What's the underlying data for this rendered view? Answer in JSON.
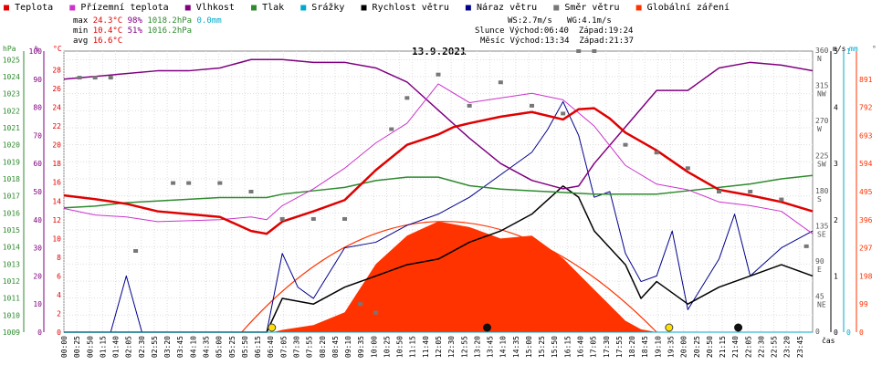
{
  "header": {
    "legend": [
      {
        "label": "Teplota",
        "color": "#e00000"
      },
      {
        "label": "Přízemní teplota",
        "color": "#cc33cc"
      },
      {
        "label": "Vlhkost",
        "color": "#800080"
      },
      {
        "label": "Tlak",
        "color": "#2e8b2e"
      },
      {
        "label": "Srážky",
        "color": "#00aacc"
      },
      {
        "label": "Rychlost větru",
        "color": "#000000"
      },
      {
        "label": "Náraz větru",
        "color": "#00008b"
      },
      {
        "label": "Směr větru",
        "color": "#777777"
      },
      {
        "label": "Globální záření",
        "color": "#ff3300"
      }
    ],
    "stats": {
      "max": {
        "label": "max",
        "temp": "24.3°C",
        "hum": "98%",
        "press": "1018.2hPa",
        "rain": "0.0mm"
      },
      "min": {
        "label": "min",
        "temp": "10.4°C",
        "hum": "51%",
        "press": "1016.2hPa"
      },
      "avg": {
        "label": "avg",
        "temp": "16.6°C"
      }
    },
    "wind": {
      "ws": "WS:2.7m/s",
      "wg": "WG:4.1m/s"
    },
    "sun": {
      "label": "Slunce",
      "rise": "Východ:06:40",
      "set": "Západ:19:24"
    },
    "moon": {
      "label": "Měsíc",
      "rise": "Východ:13:34",
      "set": "Západ:21:37"
    }
  },
  "chart_data": {
    "type": "line",
    "title": "13.9.2021",
    "xlabel": "čas",
    "x_ticks": [
      "00:00",
      "00:25",
      "00:50",
      "01:15",
      "01:40",
      "02:05",
      "02:30",
      "02:55",
      "03:20",
      "03:45",
      "04:10",
      "04:35",
      "05:00",
      "05:25",
      "05:50",
      "06:15",
      "06:40",
      "07:05",
      "07:30",
      "07:55",
      "08:20",
      "08:45",
      "09:10",
      "09:35",
      "10:00",
      "10:25",
      "10:50",
      "11:15",
      "11:40",
      "12:05",
      "12:30",
      "12:55",
      "13:20",
      "13:45",
      "14:10",
      "14:35",
      "15:00",
      "15:25",
      "15:50",
      "16:15",
      "16:40",
      "17:05",
      "17:30",
      "17:55",
      "18:20",
      "18:45",
      "19:10",
      "19:35",
      "20:00",
      "20:25",
      "20:50",
      "21:15",
      "21:40",
      "22:05",
      "22:30",
      "22:55",
      "23:20",
      "23:45"
    ],
    "axes": {
      "pressure": {
        "unit": "hPa",
        "range": [
          1009,
          1025.5
        ],
        "ticks": [
          "1025",
          "1024",
          "1023",
          "1022",
          "1021",
          "1020",
          "1019",
          "1018",
          "1017",
          "1016",
          "1015",
          "1014",
          "1013",
          "1012",
          "1011",
          "1010",
          "1009"
        ]
      },
      "humidity": {
        "unit": "%",
        "range": [
          0,
          100
        ],
        "ticks": [
          "100",
          "90",
          "80",
          "70",
          "60",
          "50",
          "40",
          "30",
          "20",
          "10",
          "0"
        ]
      },
      "temperature": {
        "unit": "°C",
        "range": [
          0,
          30
        ],
        "ticks": [
          "28",
          "26",
          "24",
          "22",
          "20",
          "18",
          "16",
          "14",
          "12",
          "10",
          "8",
          "6",
          "4",
          "2",
          "0"
        ]
      },
      "wind_dir": {
        "unit": "°",
        "range": [
          0,
          360
        ],
        "ticks": [
          "360 N",
          "315 NW",
          "270 W",
          "225 SW",
          "180 S",
          "135 SE",
          "90 E",
          "45 NE",
          "0"
        ]
      },
      "wind_speed": {
        "unit": "m/s",
        "range": [
          0,
          5
        ],
        "ticks": [
          "5",
          "4",
          "3",
          "2",
          "1",
          "0"
        ]
      },
      "rain": {
        "unit": "mm",
        "range": [
          0,
          1
        ],
        "ticks": [
          "1",
          "0"
        ]
      },
      "radiation": {
        "unit": "W/m²",
        "range": [
          0,
          990
        ],
        "ticks": [
          "891",
          "792",
          "693",
          "594",
          "495",
          "396",
          "297",
          "198",
          "99",
          "0"
        ]
      }
    },
    "series": [
      {
        "name": "Teplota",
        "axis": "temperature",
        "x": [
          0,
          1,
          2,
          3,
          4,
          5,
          6,
          6.5,
          7,
          8,
          9,
          10,
          11,
          12,
          12.5,
          13,
          14,
          15,
          16,
          16.5,
          17,
          17.5,
          18,
          19,
          20,
          21,
          22,
          23,
          24
        ],
        "y": [
          14.6,
          14.2,
          13.7,
          12.9,
          12.6,
          12.3,
          10.8,
          10.5,
          11.8,
          12.9,
          14.1,
          17.3,
          20.0,
          21.1,
          21.9,
          22.3,
          23.0,
          23.5,
          22.7,
          23.8,
          23.9,
          22.8,
          21.3,
          19.4,
          17.1,
          15.2,
          14.6,
          13.9,
          12.9
        ]
      },
      {
        "name": "Přízemní teplota",
        "axis": "temperature",
        "x": [
          0,
          1,
          2,
          3,
          4,
          5,
          6,
          6.5,
          7,
          8,
          9,
          10,
          11,
          12,
          13,
          14,
          15,
          16,
          17,
          18,
          19,
          20,
          21,
          22,
          23,
          24
        ],
        "y": [
          13.2,
          12.5,
          12.3,
          11.8,
          11.9,
          12.0,
          12.3,
          12.0,
          13.5,
          15.3,
          17.5,
          20.2,
          22.3,
          26.5,
          24.5,
          25.0,
          25.5,
          24.8,
          22.0,
          17.8,
          15.8,
          15.2,
          13.9,
          13.5,
          12.9,
          10.5
        ]
      },
      {
        "name": "Vlhkost",
        "axis": "humidity",
        "x": [
          0,
          1,
          2,
          3,
          4,
          5,
          6,
          7,
          8,
          9,
          10,
          11,
          12,
          13,
          14,
          15,
          16,
          16.5,
          17,
          18,
          19,
          20,
          21,
          22,
          23,
          24
        ],
        "y": [
          90,
          91,
          92,
          93,
          93,
          94,
          97,
          97,
          96,
          96,
          94,
          89,
          79,
          69,
          60,
          54,
          51,
          52,
          60,
          73,
          86,
          86,
          94,
          96,
          95,
          93
        ]
      },
      {
        "name": "Tlak",
        "axis": "pressure",
        "x": [
          0,
          1,
          2,
          3,
          4,
          5,
          6,
          6.5,
          7,
          8,
          9,
          10,
          11,
          12,
          13,
          14,
          15,
          16,
          17,
          18,
          19,
          20,
          21,
          22,
          23,
          24
        ],
        "y": [
          1016.3,
          1016.4,
          1016.6,
          1016.7,
          1016.8,
          1016.9,
          1016.9,
          1016.9,
          1017.1,
          1017.3,
          1017.5,
          1017.9,
          1018.1,
          1018.1,
          1017.6,
          1017.4,
          1017.3,
          1017.2,
          1017.1,
          1017.1,
          1017.1,
          1017.3,
          1017.5,
          1017.7,
          1018.0,
          1018.2
        ]
      },
      {
        "name": "Rychlost větru",
        "axis": "wind_speed",
        "x": [
          0,
          6.5,
          7,
          8,
          9,
          10,
          11,
          12,
          13,
          14,
          15,
          16,
          16.5,
          17,
          18,
          18.5,
          19,
          20,
          21,
          22,
          23,
          24
        ],
        "y": [
          0,
          0,
          0.6,
          0.5,
          0.8,
          1.0,
          1.2,
          1.3,
          1.6,
          1.8,
          2.1,
          2.6,
          2.4,
          1.8,
          1.2,
          0.6,
          0.9,
          0.5,
          0.8,
          1.0,
          1.2,
          1.0
        ]
      },
      {
        "name": "Náraz větru",
        "axis": "wind_speed",
        "x": [
          0,
          1.5,
          2,
          2.5,
          3,
          6.5,
          7,
          7.5,
          8,
          9,
          10,
          11,
          12,
          13,
          14,
          15,
          15.5,
          16,
          16.5,
          17,
          17.5,
          18,
          18.5,
          19,
          19.5,
          20,
          21,
          21.5,
          22,
          23,
          24
        ],
        "y": [
          0,
          0,
          1.0,
          0,
          0,
          0,
          1.4,
          0.8,
          0.6,
          1.5,
          1.6,
          1.9,
          2.1,
          2.4,
          2.8,
          3.2,
          3.6,
          4.1,
          3.5,
          2.4,
          2.5,
          1.4,
          0.9,
          1.0,
          1.8,
          0.4,
          1.3,
          2.1,
          1.0,
          1.5,
          1.8
        ]
      },
      {
        "name": "Směr větru",
        "axis": "wind_dir",
        "x": [
          0.5,
          1,
          1.5,
          2.3,
          3.5,
          4,
          5,
          6,
          7,
          8,
          9,
          9.5,
          10,
          10.5,
          11,
          12,
          13,
          14,
          15,
          16,
          16.5,
          17,
          18,
          19,
          20,
          21,
          22,
          23,
          23.8
        ],
        "y": [
          326,
          326,
          326,
          104,
          191,
          191,
          191,
          180,
          145,
          145,
          145,
          36,
          25,
          260,
          300,
          330,
          290,
          320,
          290,
          280,
          360,
          360,
          240,
          230,
          210,
          180,
          180,
          170,
          110
        ]
      },
      {
        "name": "Srážky",
        "axis": "rain",
        "x": [
          0,
          24
        ],
        "y": [
          0,
          0
        ]
      },
      {
        "name": "Globální záření",
        "axis": "radiation",
        "x": [
          6.7,
          7,
          8,
          9,
          10,
          11,
          12,
          12.5,
          13,
          14,
          15,
          16,
          17,
          18,
          18.5,
          19
        ],
        "y": [
          0,
          8,
          25,
          70,
          240,
          340,
          390,
          380,
          370,
          330,
          340,
          260,
          150,
          40,
          10,
          0
        ]
      }
    ],
    "markers": {
      "sunrise": "06:40",
      "sunset": "19:24",
      "moonrise": "13:34",
      "moonset": "21:37"
    }
  }
}
